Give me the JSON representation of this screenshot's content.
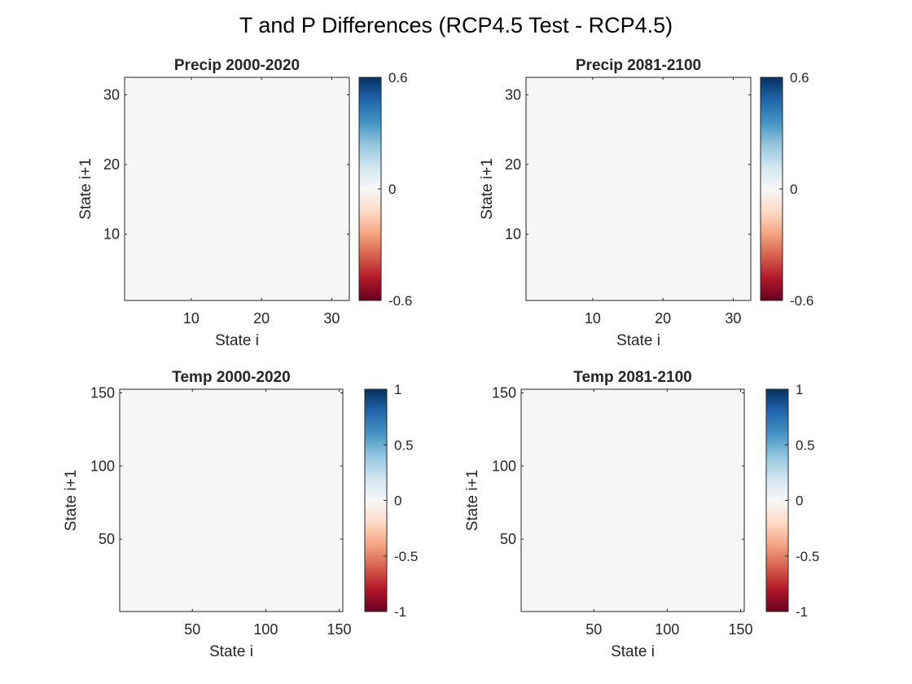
{
  "figure_title": "T and P Differences (RCP4.5 Test - RCP4.5)",
  "colors": {
    "heatmap_fill": "#f6f6f6",
    "colormap": [
      "#67001f",
      "#b2182b",
      "#d6604d",
      "#f4a582",
      "#fddbc7",
      "#f7f7f7",
      "#d1e5f0",
      "#92c5de",
      "#4393c3",
      "#2166ac",
      "#053061"
    ]
  },
  "chart_data": [
    {
      "type": "heatmap",
      "title": "Precip 2000-2020",
      "xlabel": "State i",
      "ylabel": "State i+1",
      "xlim": [
        0.5,
        32.5
      ],
      "ylim": [
        0.5,
        32.5
      ],
      "xticks": [
        10,
        20,
        30
      ],
      "yticks": [
        10,
        20,
        30
      ],
      "values_uniform": 0,
      "colorbar": {
        "range": [
          -0.6,
          0.6
        ],
        "ticks": [
          -0.6,
          0,
          0.6
        ],
        "tick_labels": [
          "-0.6",
          "0",
          "0.6"
        ]
      }
    },
    {
      "type": "heatmap",
      "title": "Precip 2081-2100",
      "xlabel": "State i",
      "ylabel": "State i+1",
      "xlim": [
        0.5,
        32.5
      ],
      "ylim": [
        0.5,
        32.5
      ],
      "xticks": [
        10,
        20,
        30
      ],
      "yticks": [
        10,
        20,
        30
      ],
      "values_uniform": 0,
      "colorbar": {
        "range": [
          -0.6,
          0.6
        ],
        "ticks": [
          -0.6,
          0,
          0.6
        ],
        "tick_labels": [
          "-0.6",
          "0",
          "0.6"
        ]
      }
    },
    {
      "type": "heatmap",
      "title": "Temp 2000-2020",
      "xlabel": "State i",
      "ylabel": "State i+1",
      "xlim": [
        0.5,
        152.5
      ],
      "ylim": [
        0.5,
        152.5
      ],
      "xticks": [
        50,
        100,
        150
      ],
      "yticks": [
        50,
        100,
        150
      ],
      "values_uniform": 0,
      "colorbar": {
        "range": [
          -1,
          1
        ],
        "ticks": [
          -1,
          -0.5,
          0,
          0.5,
          1
        ],
        "tick_labels": [
          "-1",
          "-0.5",
          "0",
          "0.5",
          "1"
        ]
      }
    },
    {
      "type": "heatmap",
      "title": "Temp 2081-2100",
      "xlabel": "State i",
      "ylabel": "State i+1",
      "xlim": [
        0.5,
        152.5
      ],
      "ylim": [
        0.5,
        152.5
      ],
      "xticks": [
        50,
        100,
        150
      ],
      "yticks": [
        50,
        100,
        150
      ],
      "values_uniform": 0,
      "colorbar": {
        "range": [
          -1,
          1
        ],
        "ticks": [
          -1,
          -0.5,
          0,
          0.5,
          1
        ],
        "tick_labels": [
          "-1",
          "-0.5",
          "0",
          "0.5",
          "1"
        ]
      }
    }
  ]
}
